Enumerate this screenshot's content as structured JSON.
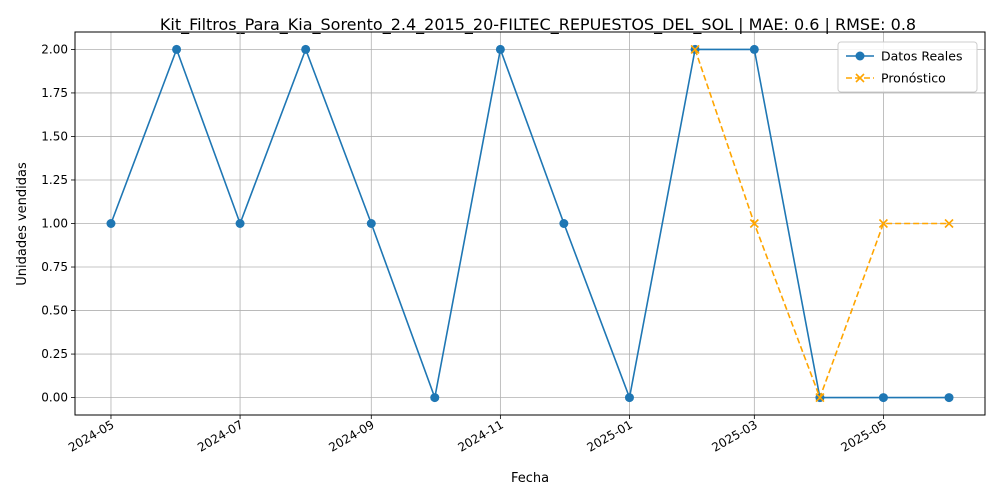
{
  "chart_data": {
    "type": "line",
    "title": "Kit_Filtros_Para_Kia_Sorento_2.4_2015_20-FILTEC_REPUESTOS_DEL_SOL | MAE: 0.6 | RMSE: 0.8",
    "xlabel": "Fecha",
    "ylabel": "Unidades vendidas",
    "x_ticks": [
      "2024-05",
      "2024-07",
      "2024-09",
      "2024-11",
      "2025-01",
      "2025-03",
      "2025-05"
    ],
    "y_ticks": [
      "0.00",
      "0.25",
      "0.50",
      "0.75",
      "1.00",
      "1.25",
      "1.50",
      "1.75",
      "2.00"
    ],
    "ylim": [
      -0.1,
      2.1
    ],
    "xlim": [
      "2024-04-14",
      "2025-06-18"
    ],
    "grid": true,
    "legend_position": "top-right",
    "series": [
      {
        "name": "Datos Reales",
        "color": "#1f77b4",
        "line_style": "solid",
        "marker": "circle",
        "x": [
          "2024-05-01",
          "2024-06-01",
          "2024-07-01",
          "2024-08-01",
          "2024-09-01",
          "2024-10-01",
          "2024-11-01",
          "2024-12-01",
          "2025-01-01",
          "2025-02-01",
          "2025-03-01",
          "2025-04-01",
          "2025-05-01",
          "2025-06-01"
        ],
        "values": [
          1,
          2,
          1,
          2,
          1,
          0,
          2,
          1,
          0,
          2,
          2,
          0,
          0,
          0
        ]
      },
      {
        "name": "Pronóstico",
        "color": "#ffa500",
        "line_style": "dashed",
        "marker": "x",
        "x": [
          "2025-02-01",
          "2025-03-01",
          "2025-04-01",
          "2025-05-01",
          "2025-06-01"
        ],
        "values": [
          2,
          1,
          0,
          1,
          1
        ]
      }
    ]
  }
}
